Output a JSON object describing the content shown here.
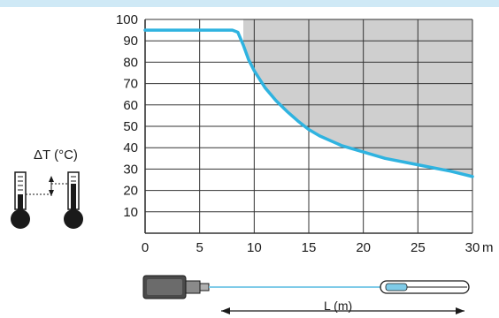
{
  "chart_data": {
    "type": "line",
    "title": "",
    "xlabel": "L (m)",
    "x_unit": "m",
    "ylabel": "ΔT (°C)",
    "xlim": [
      0,
      30
    ],
    "ylim": [
      0,
      100
    ],
    "x_ticks": [
      "0",
      "5",
      "10",
      "15",
      "20",
      "25",
      "30"
    ],
    "y_ticks": [
      "10",
      "20",
      "30",
      "40",
      "50",
      "60",
      "70",
      "80",
      "90",
      "100"
    ],
    "grid": true,
    "series": [
      {
        "x": [
          0,
          8,
          8.5,
          9,
          9.5,
          10,
          11,
          12,
          13,
          14,
          15,
          16,
          18,
          20,
          22,
          24,
          26,
          28,
          30
        ],
        "y": [
          95,
          95,
          94,
          88,
          81,
          76,
          68,
          62,
          57,
          52.5,
          48.5,
          45.5,
          41,
          38,
          35,
          33,
          31,
          29,
          26.5
        ]
      }
    ],
    "shaded_region": "above curve, x ≥ 9 m"
  },
  "colors": {
    "curve": "#2fb3e0",
    "shade": "#cfcfcf",
    "grid": "#333333",
    "accent_band": "#cfe9f6",
    "thermometer": "#1a1a1a"
  },
  "icons": [
    "thermometer-icon",
    "sensor-icon",
    "probe-icon",
    "dimension-arrow-icon"
  ]
}
